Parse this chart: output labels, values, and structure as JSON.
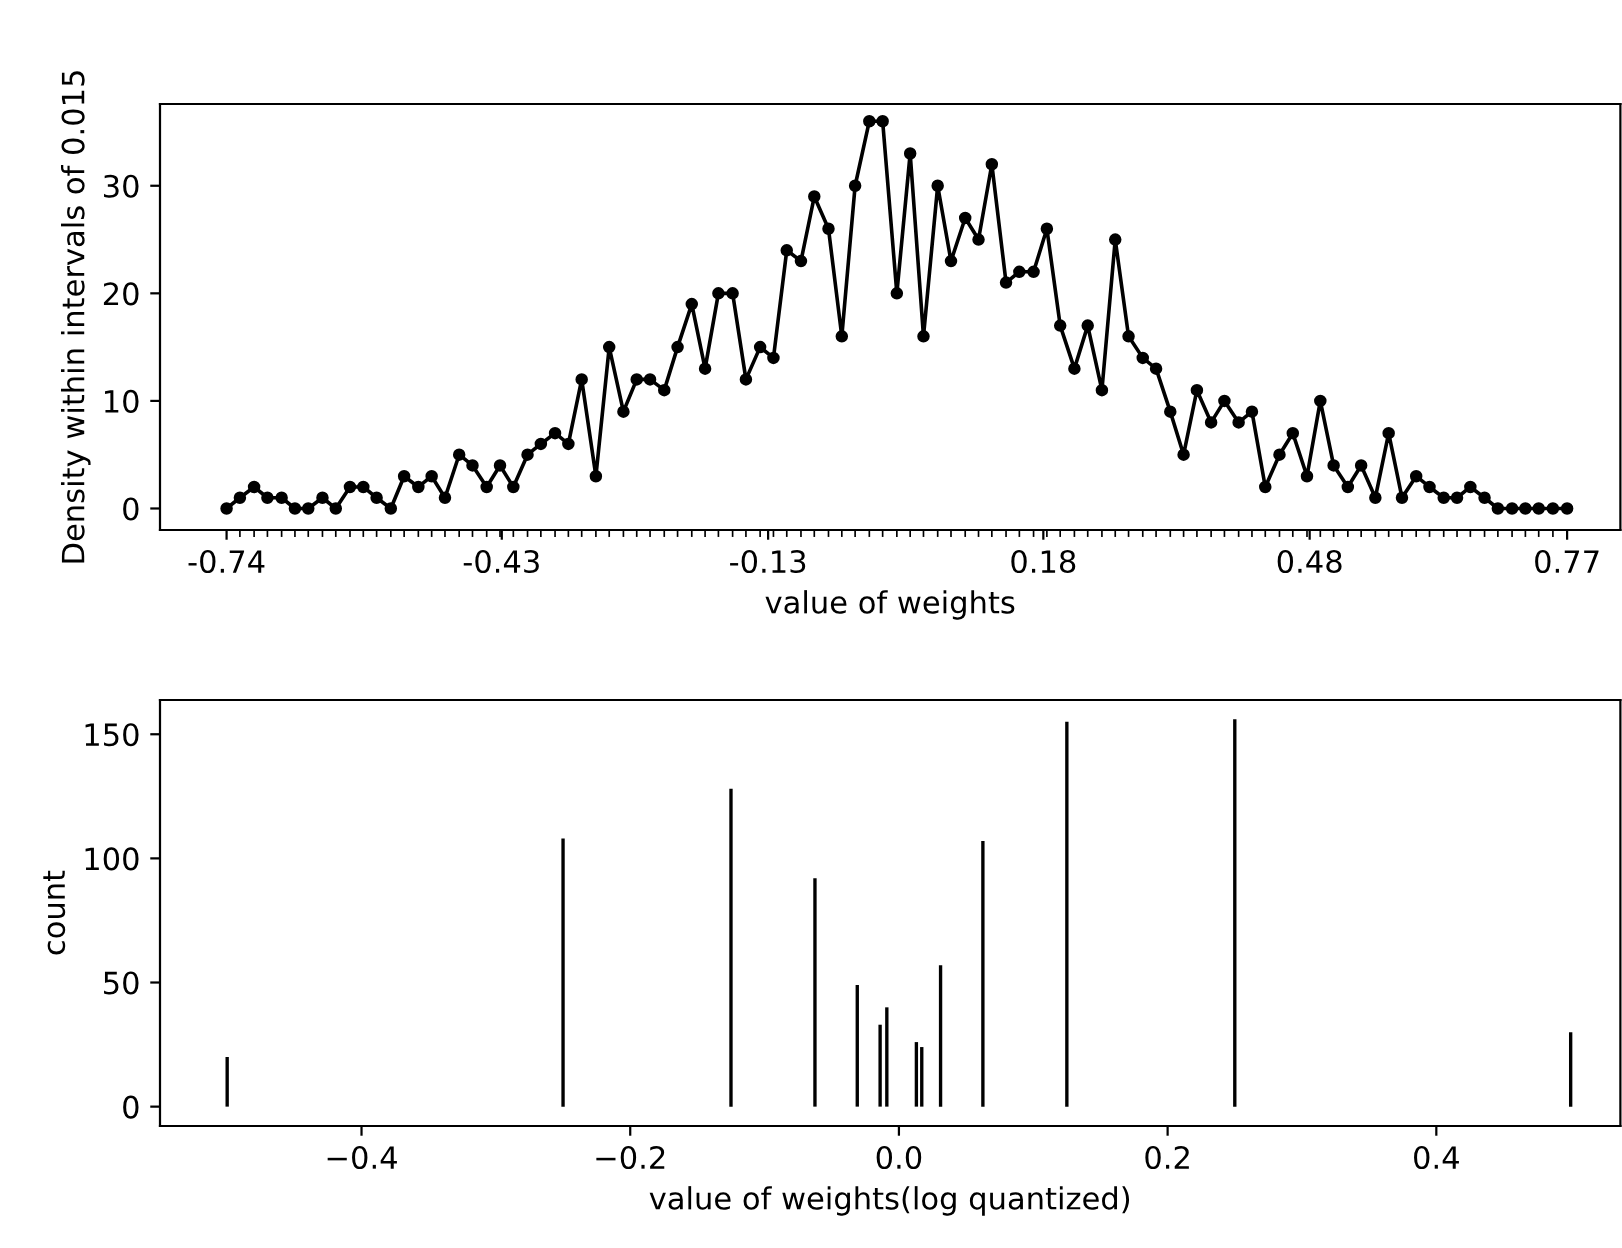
{
  "chart_data": [
    {
      "type": "line",
      "xlabel": "value of weights",
      "ylabel": "Density within intervals of 0.015",
      "color": "#000000",
      "marker": "circle",
      "line_style": "solid",
      "grid": false,
      "x": [
        -0.74,
        -0.725,
        -0.709,
        -0.694,
        -0.678,
        -0.663,
        -0.648,
        -0.632,
        -0.617,
        -0.601,
        -0.586,
        -0.571,
        -0.555,
        -0.54,
        -0.524,
        -0.509,
        -0.494,
        -0.478,
        -0.463,
        -0.447,
        -0.432,
        -0.417,
        -0.401,
        -0.386,
        -0.37,
        -0.355,
        -0.34,
        -0.324,
        -0.309,
        -0.293,
        -0.278,
        -0.263,
        -0.247,
        -0.232,
        -0.216,
        -0.201,
        -0.186,
        -0.17,
        -0.155,
        -0.139,
        -0.124,
        -0.109,
        -0.093,
        -0.078,
        -0.062,
        -0.047,
        -0.032,
        -0.016,
        -0.001,
        0.015,
        0.03,
        0.045,
        0.061,
        0.076,
        0.092,
        0.107,
        0.122,
        0.138,
        0.153,
        0.169,
        0.184,
        0.199,
        0.215,
        0.23,
        0.246,
        0.261,
        0.276,
        0.292,
        0.307,
        0.323,
        0.338,
        0.353,
        0.369,
        0.384,
        0.4,
        0.415,
        0.43,
        0.446,
        0.461,
        0.477,
        0.492,
        0.507,
        0.523,
        0.538,
        0.554,
        0.569,
        0.584,
        0.6,
        0.615,
        0.631,
        0.646,
        0.661,
        0.677,
        0.692,
        0.708,
        0.723,
        0.738,
        0.754,
        0.77
      ],
      "values": [
        0,
        1,
        2,
        1,
        1,
        0,
        0,
        1,
        0,
        2,
        2,
        1,
        0,
        3,
        2,
        3,
        1,
        5,
        4,
        2,
        4,
        2,
        5,
        6,
        7,
        6,
        12,
        3,
        15,
        9,
        12,
        12,
        11,
        15,
        19,
        13,
        20,
        20,
        12,
        15,
        14,
        24,
        23,
        29,
        26,
        16,
        30,
        36,
        36,
        20,
        33,
        16,
        30,
        23,
        27,
        25,
        32,
        21,
        22,
        22,
        26,
        17,
        13,
        17,
        11,
        25,
        16,
        14,
        13,
        9,
        5,
        11,
        8,
        10,
        8,
        9,
        2,
        5,
        7,
        3,
        10,
        4,
        2,
        4,
        1,
        7,
        1,
        3,
        2,
        1,
        1,
        2,
        1,
        0,
        0,
        0,
        0,
        0,
        0
      ],
      "xlim": [
        -0.815,
        0.83
      ],
      "ylim": [
        -2,
        37.6
      ],
      "xticks": [
        -0.74,
        -0.43,
        -0.13,
        0.18,
        0.48,
        0.77
      ],
      "yticks": [
        0,
        10,
        20,
        30
      ]
    },
    {
      "type": "bar",
      "xlabel": "value of weights(log quantized)",
      "ylabel": "count",
      "color": "#000000",
      "grid": false,
      "x": [
        -0.5,
        -0.25,
        -0.125,
        -0.0625,
        -0.031,
        -0.014,
        -0.009,
        0.013,
        0.017,
        0.031,
        0.0625,
        0.125,
        0.25,
        0.5
      ],
      "values": [
        20,
        108,
        128,
        92,
        49,
        33,
        40,
        26,
        24,
        57,
        107,
        155,
        156,
        30
      ],
      "xlim": [
        -0.55,
        0.537
      ],
      "ylim": [
        -7.8,
        163.8
      ],
      "xticks": [
        {
          "value": -0.4,
          "label": "−0.4"
        },
        {
          "value": -0.2,
          "label": "−0.2"
        },
        {
          "value": 0.0,
          "label": "0.0"
        },
        {
          "value": 0.2,
          "label": "0.2"
        },
        {
          "value": 0.4,
          "label": "0.4"
        }
      ],
      "yticks": [
        0,
        50,
        100,
        150
      ]
    }
  ]
}
